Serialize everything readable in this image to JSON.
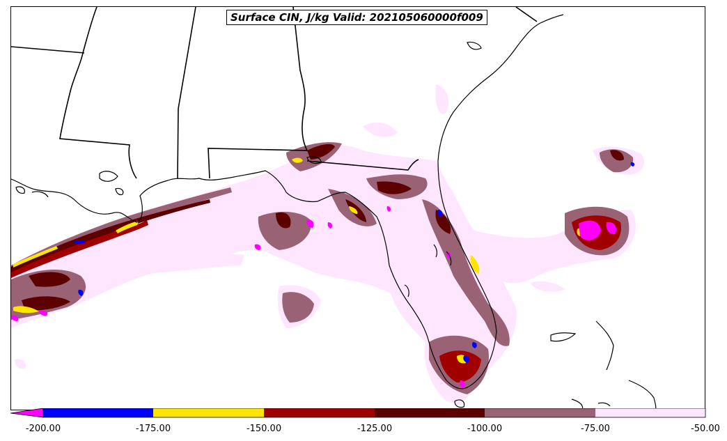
{
  "title": "Surface CIN, J/kg Valid: 202105060000f009",
  "colorbar": {
    "ticks": [
      "-200.00",
      "-175.00",
      "-150.00",
      "-125.00",
      "-100.00",
      "-75.00",
      "-50.00"
    ],
    "colors": [
      "#ff00ff",
      "#0000ff",
      "#ffe600",
      "#a00000",
      "#5c0000",
      "#9a6275",
      "#ffe6ff"
    ],
    "extend": "min"
  },
  "map": {
    "region": "Southeastern United States / Florida",
    "land_color": "#ffffff",
    "border_color": "#000000"
  }
}
